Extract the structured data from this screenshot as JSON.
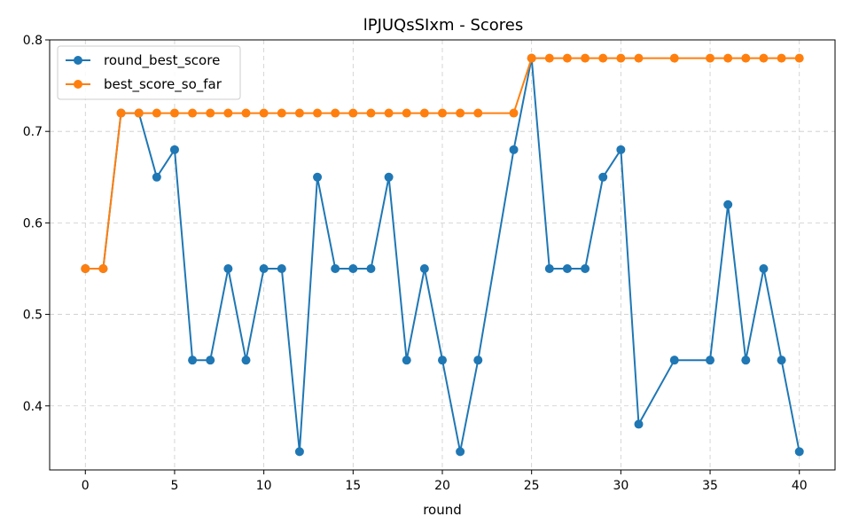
{
  "chart_data": {
    "type": "line",
    "title": "lPJUQsSIxm - Scores",
    "xlabel": "round",
    "ylabel": "",
    "xlim": [
      -2,
      42
    ],
    "ylim": [
      0.33,
      0.8
    ],
    "xticks": [
      0,
      5,
      10,
      15,
      20,
      25,
      30,
      35,
      40
    ],
    "yticks": [
      0.4,
      0.5,
      0.6,
      0.7,
      0.8
    ],
    "xtick_labels": [
      "0",
      "5",
      "10",
      "15",
      "20",
      "25",
      "30",
      "35",
      "40"
    ],
    "ytick_labels": [
      "0.4",
      "0.5",
      "0.6",
      "0.7",
      "0.8"
    ],
    "grid": true,
    "legend_position": "top-left",
    "series": [
      {
        "name": "round_best_score",
        "color": "#1f77b4",
        "x": [
          0,
          1,
          2,
          3,
          4,
          5,
          6,
          7,
          8,
          9,
          10,
          11,
          12,
          13,
          14,
          15,
          16,
          17,
          18,
          19,
          20,
          21,
          22,
          24,
          25,
          26,
          27,
          28,
          29,
          30,
          31,
          33,
          35,
          36,
          37,
          38,
          39,
          40
        ],
        "y": [
          0.55,
          0.55,
          0.72,
          0.72,
          0.65,
          0.68,
          0.45,
          0.45,
          0.55,
          0.45,
          0.55,
          0.55,
          0.35,
          0.65,
          0.55,
          0.55,
          0.55,
          0.65,
          0.45,
          0.55,
          0.45,
          0.35,
          0.45,
          0.68,
          0.78,
          0.55,
          0.55,
          0.55,
          0.65,
          0.68,
          0.38,
          0.45,
          0.45,
          0.62,
          0.45,
          0.55,
          0.45,
          0.35
        ]
      },
      {
        "name": "best_score_so_far",
        "color": "#ff7f0e",
        "x": [
          0,
          1,
          2,
          3,
          4,
          5,
          6,
          7,
          8,
          9,
          10,
          11,
          12,
          13,
          14,
          15,
          16,
          17,
          18,
          19,
          20,
          21,
          22,
          24,
          25,
          26,
          27,
          28,
          29,
          30,
          31,
          33,
          35,
          36,
          37,
          38,
          39,
          40
        ],
        "y": [
          0.55,
          0.55,
          0.72,
          0.72,
          0.72,
          0.72,
          0.72,
          0.72,
          0.72,
          0.72,
          0.72,
          0.72,
          0.72,
          0.72,
          0.72,
          0.72,
          0.72,
          0.72,
          0.72,
          0.72,
          0.72,
          0.72,
          0.72,
          0.72,
          0.78,
          0.78,
          0.78,
          0.78,
          0.78,
          0.78,
          0.78,
          0.78,
          0.78,
          0.78,
          0.78,
          0.78,
          0.78,
          0.78
        ]
      }
    ]
  }
}
